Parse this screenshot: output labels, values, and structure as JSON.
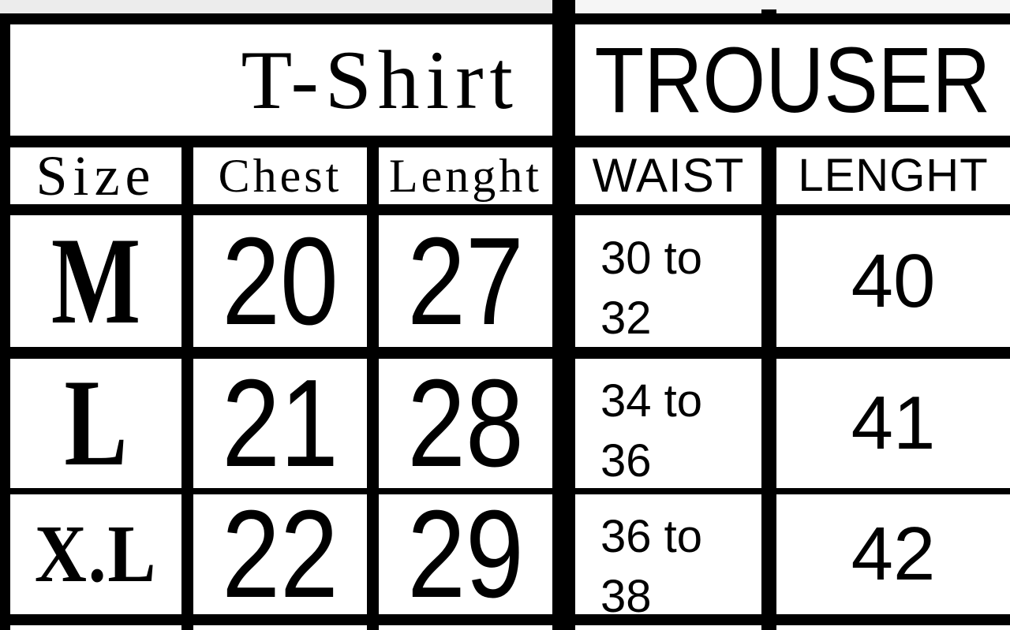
{
  "colors": {
    "line": "#000000",
    "background": "#ffffff",
    "text": "#000000"
  },
  "tshirt": {
    "title": "T-Shirt",
    "headers": [
      "Size",
      "Chest",
      "Lenght"
    ],
    "rows": [
      [
        "M",
        "20",
        "27"
      ],
      [
        "L",
        "21",
        "28"
      ],
      [
        "X.L",
        "22",
        "29"
      ]
    ]
  },
  "trouser": {
    "title": "TROUSER",
    "headers": [
      "WAIST",
      "LENGHT"
    ],
    "rows": [
      [
        "30 to 32",
        "40"
      ],
      [
        "34 to 36",
        "41"
      ],
      [
        "36 to 38",
        "42"
      ]
    ]
  }
}
